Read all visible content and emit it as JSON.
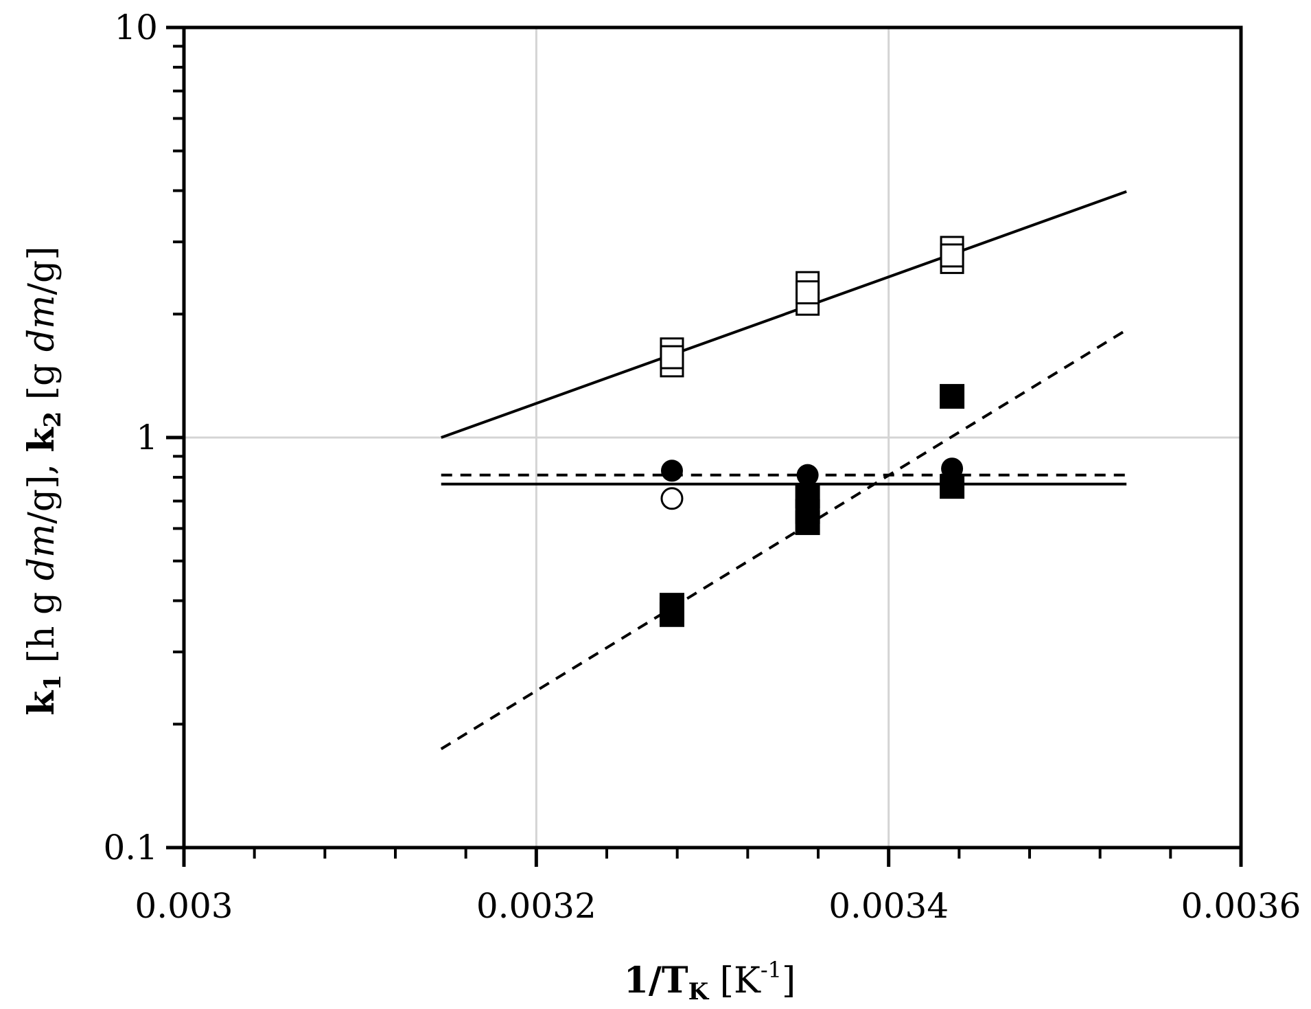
{
  "chart_data": {
    "type": "scatter",
    "title": "",
    "xlabel": {
      "main": "1/T",
      "sub": "K",
      "unit_open": " [K",
      "unit_sup": "-1",
      "unit_close": "]"
    },
    "ylabel": {
      "k1": "k",
      "k1_sub": "1",
      "k1_unit_a": " [h g ",
      "k1_unit_dm": "dm",
      "k1_unit_b": "/g], ",
      "k2": "k",
      "k2_sub": "2",
      "k2_unit_a": " [g ",
      "k2_unit_dm": "dm",
      "k2_unit_b": "/g]"
    },
    "x_range": [
      0.003,
      0.0036
    ],
    "y_range": [
      0.1,
      10
    ],
    "y_scale": "log",
    "x_ticks": [
      "0.003",
      "0.0032",
      "0.0034",
      "0.0036"
    ],
    "y_ticks": [
      "0.1",
      "1",
      "10"
    ],
    "grid": true,
    "legend": "none",
    "series": [
      {
        "marker": "square-open",
        "points": [
          [
            0.003277,
            1.64
          ],
          [
            0.003277,
            1.5
          ],
          [
            0.003277,
            1.57
          ],
          [
            0.003354,
            2.38
          ],
          [
            0.003354,
            2.12
          ],
          [
            0.003354,
            2.26
          ],
          [
            0.003436,
            2.9
          ],
          [
            0.003436,
            2.68
          ],
          [
            0.003436,
            2.78
          ]
        ]
      },
      {
        "marker": "square-filled",
        "points": [
          [
            0.003277,
            0.39
          ],
          [
            0.003277,
            0.37
          ],
          [
            0.003277,
            0.38
          ],
          [
            0.003354,
            0.72
          ],
          [
            0.003354,
            0.66
          ],
          [
            0.003354,
            0.62
          ],
          [
            0.003436,
            1.26
          ],
          [
            0.003436,
            0.76
          ]
        ]
      },
      {
        "marker": "circle-filled",
        "points": [
          [
            0.003277,
            0.83
          ],
          [
            0.003354,
            0.81
          ],
          [
            0.003436,
            0.84
          ]
        ]
      },
      {
        "marker": "circle-open",
        "points": [
          [
            0.003277,
            0.71
          ]
        ]
      }
    ],
    "lines": [
      {
        "style": "solid",
        "from": [
          0.003146,
          1.0
        ],
        "to": [
          0.003535,
          3.98
        ]
      },
      {
        "style": "dashed",
        "from": [
          0.003146,
          0.174
        ],
        "to": [
          0.003535,
          1.83
        ]
      },
      {
        "style": "dashed",
        "from": [
          0.003146,
          0.81
        ],
        "to": [
          0.003535,
          0.81
        ]
      },
      {
        "style": "solid",
        "from": [
          0.003146,
          0.77
        ],
        "to": [
          0.003535,
          0.77
        ]
      }
    ]
  }
}
